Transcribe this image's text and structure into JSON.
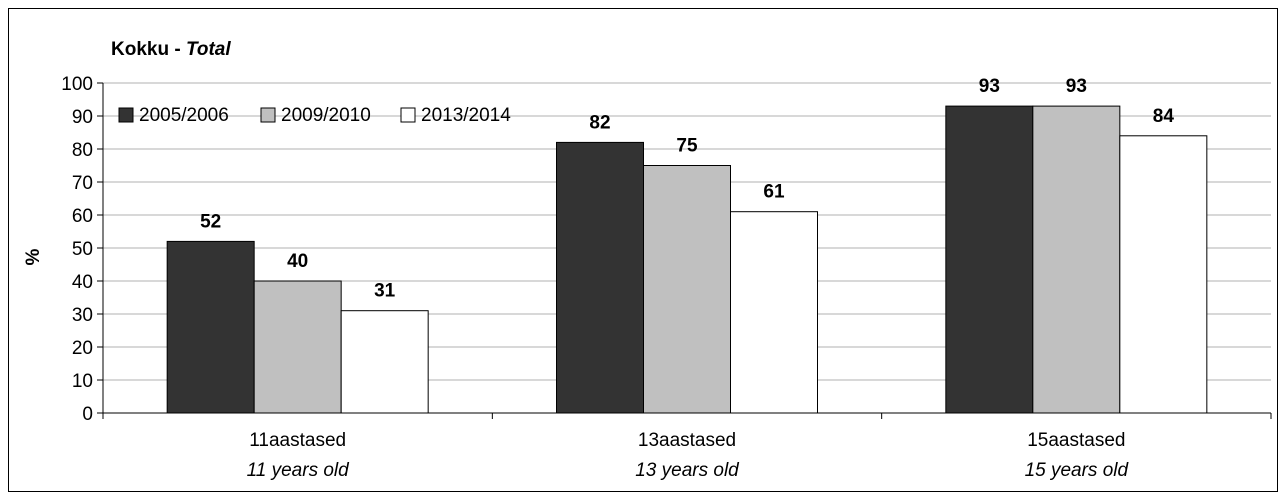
{
  "chart_data": {
    "type": "bar",
    "title": "Kokku - ",
    "title_italic": "Total",
    "ylabel": "%",
    "xlabel": "",
    "ylim": [
      0,
      100
    ],
    "yticks": [
      0,
      10,
      20,
      30,
      40,
      50,
      60,
      70,
      80,
      90,
      100
    ],
    "grid": true,
    "legend_position": "top-left",
    "categories": [
      "11aastased",
      "13aastased",
      "15aastased"
    ],
    "categories_sub": [
      "11 years old",
      "13 years old",
      "15 years old"
    ],
    "series": [
      {
        "name": "2005/2006",
        "color": "#333333",
        "values": [
          52,
          82,
          93
        ]
      },
      {
        "name": "2009/2010",
        "color": "#c0c0c0",
        "values": [
          40,
          75,
          93
        ]
      },
      {
        "name": "2013/2014",
        "color": "#ffffff",
        "values": [
          31,
          61,
          84
        ]
      }
    ]
  }
}
